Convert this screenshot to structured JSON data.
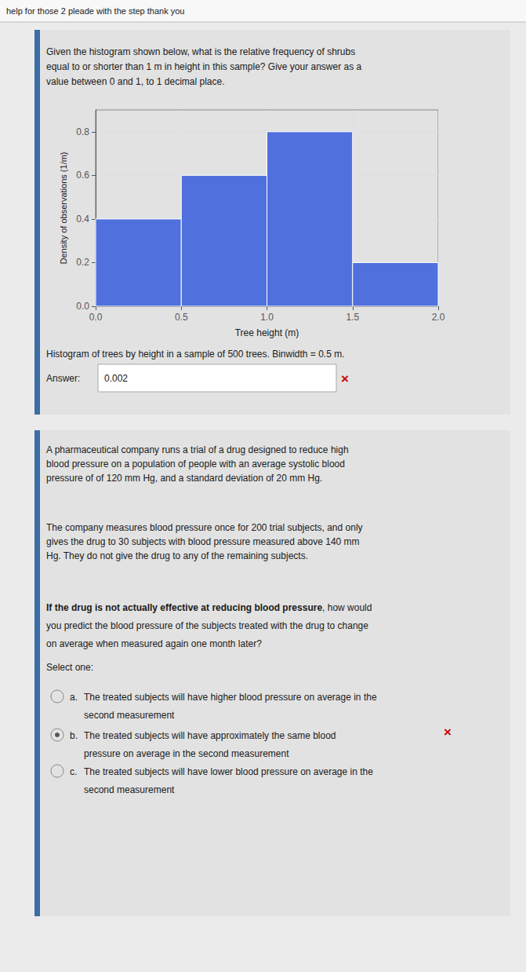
{
  "chart_data": {
    "type": "histogram",
    "bins": [
      0.0,
      0.5,
      1.0,
      1.5,
      2.0
    ],
    "values": [
      0.4,
      0.6,
      0.8,
      0.2
    ],
    "xlabel": "Tree height (m)",
    "ylabel": "Density of observations (1/m)",
    "xlim": [
      0.0,
      2.0
    ],
    "ylim": [
      0.0,
      0.9
    ],
    "xticks": [
      {
        "value": 0,
        "label": "0.0"
      },
      0.5,
      {
        "value": 1,
        "label": "1.0"
      },
      1.5,
      {
        "value": 2,
        "label": "2.0"
      }
    ],
    "yticks": [
      {
        "value": 0,
        "label": "0.0"
      },
      0.2,
      0.4,
      0.6,
      0.8
    ],
    "grid": true,
    "annotations": [
      "help for those 2 pleade with the step thank you",
      "Given the histogram shown below, what is the relative frequency of shrubs\nequal to or shorter than 1 m in height in this sample? Give your answer as a\nvalue between 0 and 1, to 1 decimal place.",
      "Histogram of trees by height in a sample of 500 trees. Binwidth = 0.5 m.",
      "Answer:",
      "0.002",
      {
        "text": "×",
        "color": "#cc0000"
      },
      "A pharmaceutical company runs a trial of a drug designed to reduce high\nblood pressure on a population of people with an average systolic blood\npressure of of 120 mm Hg, and a standard deviation of 20 mm Hg.",
      "The company measures blood pressure once for 200 trial subjects, and only\ngives the drug to 30 subjects with blood pressure measured above 140 mm\nHg. They do not give the drug to any of the remaining subjects.",
      "If the drug is not actually effective at reducing blood pressure",
      ", how would\nyou predict the blood pressure of the subjects treated with the drug to change\non average when measured again one month later?",
      "Select one:",
      "a.",
      "The treated subjects will have higher blood pressure on average in the\nsecond measurement",
      "b.",
      "The treated subjects will have approximately the same blood\npressure on average in the second measurement",
      {
        "text": "×",
        "color": "#cc0000"
      },
      "c.",
      "The treated subjects will have lower blood pressure on average in the\nsecond measurement"
    ]
  }
}
